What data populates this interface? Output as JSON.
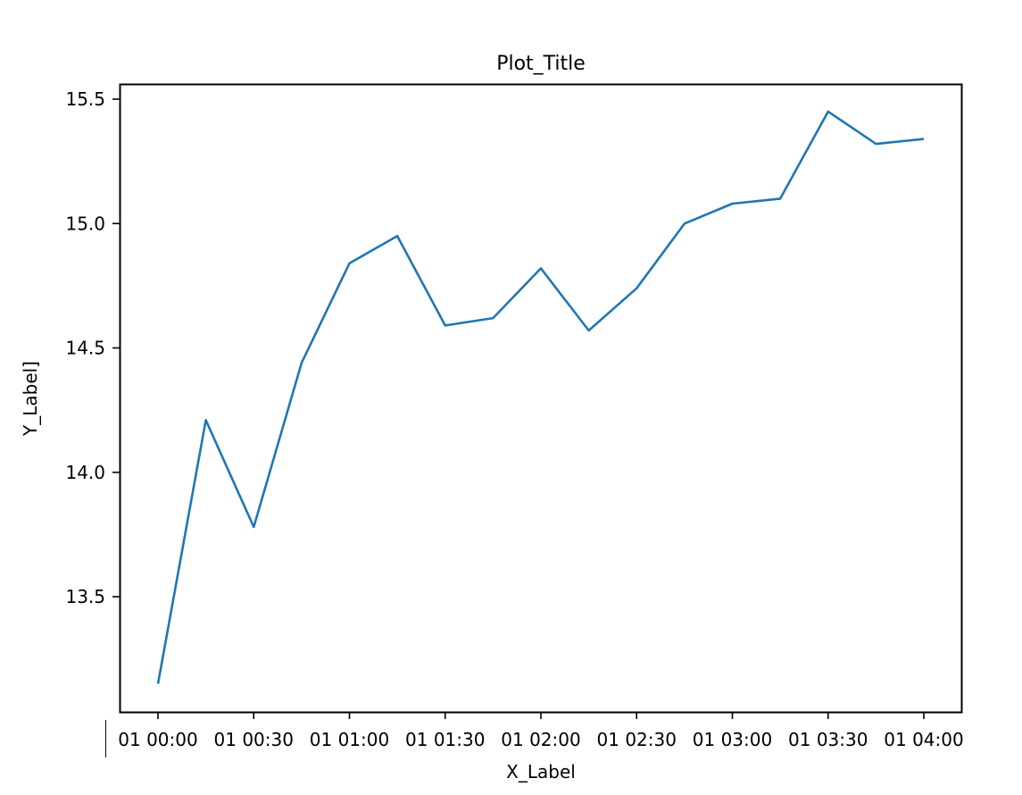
{
  "chart_data": {
    "type": "line",
    "title": "Plot_Title",
    "xlabel": "X_Label",
    "ylabel": "Y_Label]",
    "x_ticks": [
      {
        "label": "01 00:00",
        "minutes": 0
      },
      {
        "label": "01 00:30",
        "minutes": 30
      },
      {
        "label": "01 01:00",
        "minutes": 60
      },
      {
        "label": "01 01:30",
        "minutes": 90
      },
      {
        "label": "01 02:00",
        "minutes": 120
      },
      {
        "label": "01 02:30",
        "minutes": 150
      },
      {
        "label": "01 03:00",
        "minutes": 180
      },
      {
        "label": "01 03:30",
        "minutes": 210
      },
      {
        "label": "01 04:00",
        "minutes": 240
      }
    ],
    "y_ticks": [
      "13.5",
      "14.0",
      "14.5",
      "15.0",
      "15.5"
    ],
    "ylim": [
      13.02,
      15.56
    ],
    "grid": false,
    "series": [
      {
        "color": "#1f77b4",
        "x": [
          "01 00:00",
          "01 00:15",
          "01 00:30",
          "01 00:45",
          "01 01:00",
          "01 01:15",
          "01 01:30",
          "01 01:45",
          "01 02:00",
          "01 02:15",
          "01 02:30",
          "01 02:45",
          "01 03:00",
          "01 03:15",
          "01 03:30",
          "01 03:45",
          "01 04:00"
        ],
        "values": [
          13.15,
          14.21,
          13.78,
          14.44,
          14.84,
          14.95,
          14.59,
          14.62,
          14.82,
          14.57,
          14.74,
          15.0,
          15.08,
          15.1,
          15.45,
          15.32,
          15.34
        ]
      }
    ]
  }
}
